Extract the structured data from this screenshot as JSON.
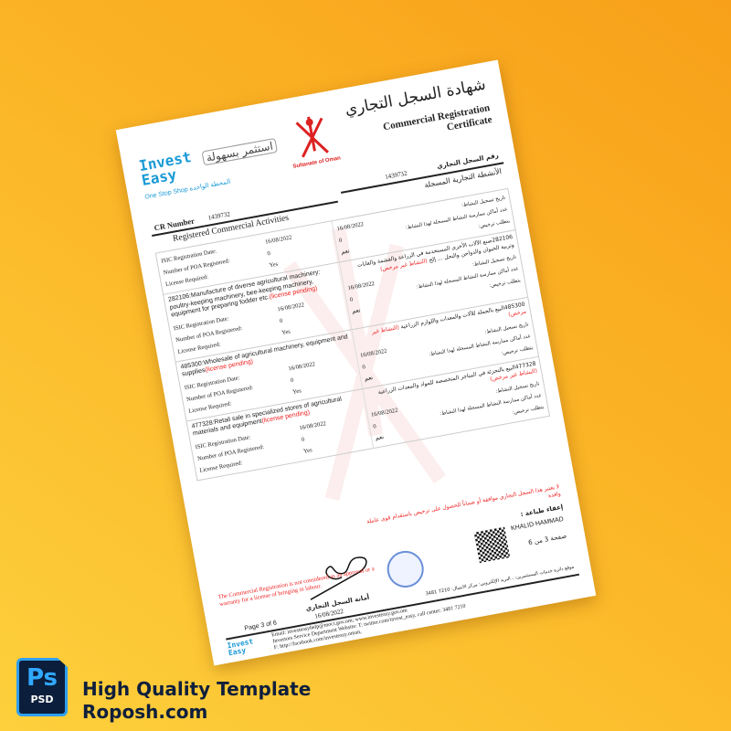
{
  "header": {
    "logo_en_line1": "Invest",
    "logo_en_line2": "Easy",
    "logo_ar": "استثمر بسهولة",
    "logo_tagline": "One Stop Shop المحطة الواحدة",
    "emblem_caption": "Sultanate of Oman",
    "title_ar": "شهادة السجل التجاري",
    "title_en": "Commercial Registration Certificate",
    "cr_label_ar": "رقم السجل التجاري",
    "cr_number": "1439732",
    "cr_label_en": "CR Number",
    "section_ar": "الأنشطة التجارية المسجلة",
    "section_en": "Registered Commercial Activities"
  },
  "labels": {
    "date_en": "ISIC Registration Date:",
    "poa_en": "Number of POA Registered:",
    "license_en": "License Required:",
    "date_ar": "تاريخ تسجيل النشاط:",
    "poa_ar": "عدد أماكن ممارسة النشاط المسجلة لهذا النشاط:",
    "license_ar": "يتطلب ترخيص:",
    "pending_en": "(license pending)",
    "pending_ar": "(النشاط غير مرخص)"
  },
  "activities": [
    {
      "title_en": "",
      "title_ar": "",
      "date": "16/08/2022",
      "poa": "0",
      "license_en": "Yes",
      "license_ar": "نعم"
    },
    {
      "title_en": "282106:Manufacture of diverse agricultural machinery: poultry-keeping machinery, bee-keeping machinery, equipment for preparing fodder etc.",
      "title_ar": "282106صنع الآلات الأخرى المستخدمة في الزراعة والقشمة والغابات وتربية الحيوان والدواجن والنحل ... إلخ",
      "date": "16/08/2022",
      "poa": "0",
      "license_en": "Yes",
      "license_ar": "نعم"
    },
    {
      "title_en": "485300:Wholesale of agricultural machinery, equipment and supplies",
      "title_ar": "485300البيع بالجملة للآلات والمعدات واللوازم الزراعية",
      "date": "16/08/2022",
      "poa": "0",
      "license_en": "Yes",
      "license_ar": "نعم"
    },
    {
      "title_en": "477328:Retail sale in specialized stores of agricultural materials and equipment",
      "title_ar": "477328البيع بالتجزئة في المتاجر المتخصصة للمواد والمعدات الزراعية",
      "date": "16/08/2022",
      "poa": "0",
      "license_en": "Yes",
      "license_ar": "نعم"
    }
  ],
  "bottom": {
    "notice_ar": "لا يعتبر هذا السجل التجاري موافقة أو ضماناً للحصول على ترخيص باستقدام قوى عاملة وافدة",
    "print_exempt_ar": "إعفاء طباعة :",
    "signer": "KHALID HAMMAD",
    "page_ar": "صفحة 3 من 6",
    "notice_en": "The Commercial Registration is not considered as an approval or a warranty for a license of bringing in labour.",
    "registrar_ar": "أمانة السجل التجاري",
    "sign_date": "16/08/2022",
    "page_en": "Page 3 of 6"
  },
  "footer": {
    "line1": "Email: investeasyhelp@moci.gov.om;   www.investeasy.gov.om",
    "line2": "Investors Service Department Website: T: twitter.com/invest_easy, call center: 3481 7210",
    "line3": "F: http://facebook.com/investeasy.oman,",
    "ar": "موقع دائرة خدمات المستثمرين: ، البريد الإلكتروني: مركز الاتصال: 7210 3481"
  },
  "branding": {
    "ps_icon": "Ps",
    "ps_label": "PSD",
    "line1": "High Quality Template",
    "line2": "Roposh.com"
  },
  "colors": {
    "accent_blue": "#1a9ad6",
    "red": "#e22222",
    "bg_orange": "#f8a019",
    "bg_yellow": "#fdd03c",
    "navy": "#0f1f3d"
  }
}
